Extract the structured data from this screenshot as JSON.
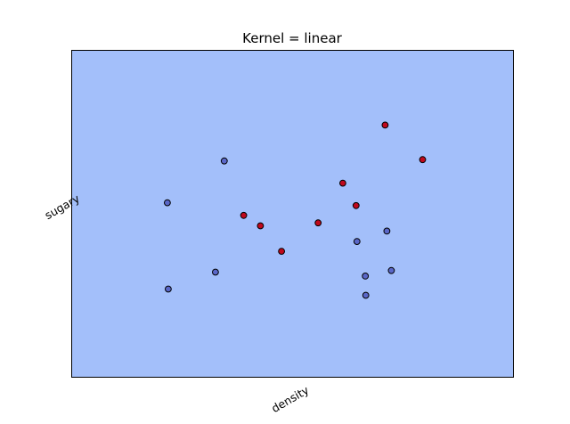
{
  "chart_data": {
    "type": "scatter",
    "title": "Kernel = linear",
    "xlabel": "density",
    "ylabel": "sugary",
    "xlim": [
      0,
      1
    ],
    "ylim": [
      0,
      1
    ],
    "ticks": "hidden",
    "grid": false,
    "legend": "none",
    "colors": {
      "background_region": "#a3bffa",
      "class_0": "#5a67c8",
      "class_1": "#c0081c",
      "marker_edge": "#000000"
    },
    "series": [
      {
        "class": 0,
        "color": "#5a67c8",
        "points": [
          {
            "x": 0.345,
            "y": 0.662
          },
          {
            "x": 0.216,
            "y": 0.534
          },
          {
            "x": 0.218,
            "y": 0.269
          },
          {
            "x": 0.325,
            "y": 0.321
          },
          {
            "x": 0.666,
            "y": 0.25
          },
          {
            "x": 0.646,
            "y": 0.415
          },
          {
            "x": 0.665,
            "y": 0.309
          },
          {
            "x": 0.724,
            "y": 0.326
          },
          {
            "x": 0.714,
            "y": 0.447
          }
        ]
      },
      {
        "class": 1,
        "color": "#c0081c",
        "points": [
          {
            "x": 0.71,
            "y": 0.772
          },
          {
            "x": 0.795,
            "y": 0.666
          },
          {
            "x": 0.614,
            "y": 0.594
          },
          {
            "x": 0.644,
            "y": 0.525
          },
          {
            "x": 0.389,
            "y": 0.495
          },
          {
            "x": 0.427,
            "y": 0.463
          },
          {
            "x": 0.558,
            "y": 0.472
          },
          {
            "x": 0.475,
            "y": 0.385
          }
        ]
      }
    ]
  }
}
